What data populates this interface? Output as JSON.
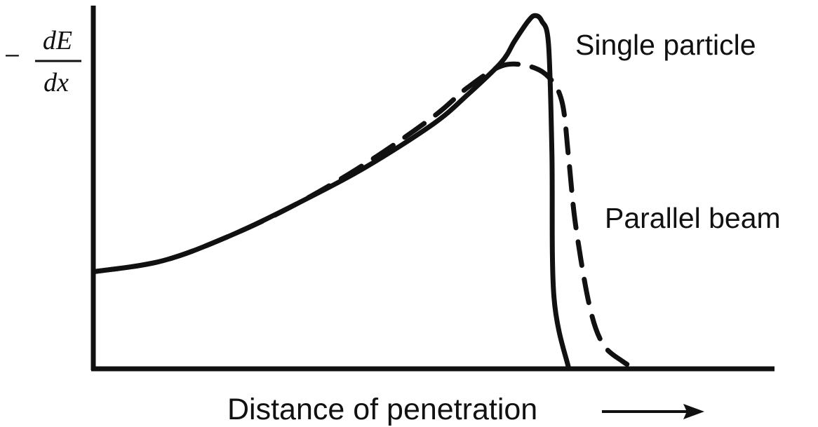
{
  "chart_data": {
    "type": "line",
    "title": "",
    "xlabel": "Distance of penetration",
    "ylabel": {
      "prefix": "–",
      "numerator": "dE",
      "denominator": "dx"
    },
    "xlim": [
      0,
      1
    ],
    "ylim": [
      0,
      1
    ],
    "ticks": "none",
    "grid": false,
    "legend": "inline",
    "series": [
      {
        "name": "Single particle",
        "style": "solid",
        "x": [
          0.0,
          0.1,
          0.2,
          0.3,
          0.4,
          0.5,
          0.55,
          0.6,
          0.62,
          0.64,
          0.65,
          0.66,
          0.67,
          0.675,
          0.678,
          0.7
        ],
        "y": [
          0.27,
          0.3,
          0.37,
          0.46,
          0.56,
          0.68,
          0.76,
          0.85,
          0.91,
          0.965,
          0.98,
          0.965,
          0.9,
          0.6,
          0.2,
          0.0
        ]
      },
      {
        "name": "Parallel beam",
        "style": "dashed",
        "x": [
          0.0,
          0.1,
          0.2,
          0.3,
          0.4,
          0.5,
          0.55,
          0.6,
          0.64,
          0.67,
          0.69,
          0.7,
          0.71,
          0.73,
          0.75,
          0.78,
          0.8
        ],
        "y": [
          0.27,
          0.3,
          0.37,
          0.46,
          0.57,
          0.7,
          0.78,
          0.84,
          0.84,
          0.81,
          0.74,
          0.58,
          0.4,
          0.18,
          0.07,
          0.02,
          0.0
        ]
      }
    ]
  },
  "axis_arrow": "⟶"
}
